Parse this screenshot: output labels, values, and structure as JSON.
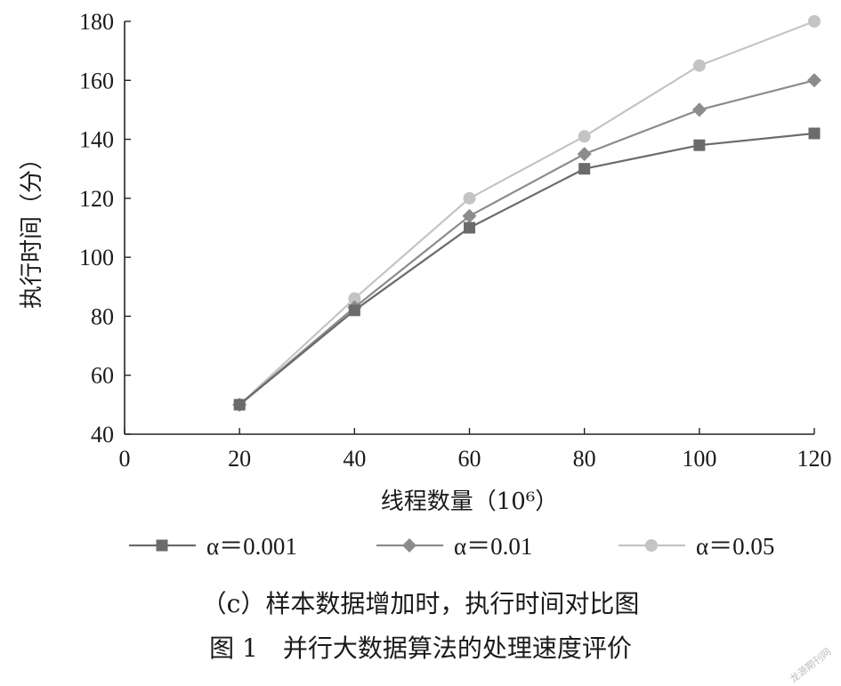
{
  "chart_data": {
    "type": "line",
    "xlabel": "线程数量（10⁶）",
    "ylabel": "执行时间（分）",
    "xlim": [
      0,
      120
    ],
    "ylim": [
      40,
      180
    ],
    "x_ticks": [
      "0",
      "20",
      "40",
      "60",
      "80",
      "100",
      "120"
    ],
    "y_ticks": [
      "40",
      "60",
      "80",
      "100",
      "120",
      "140",
      "160",
      "180"
    ],
    "x": [
      20,
      40,
      60,
      80,
      100,
      120
    ],
    "series": [
      {
        "name": "α＝0.001",
        "marker": "square",
        "color": "#6b6b6b",
        "values": [
          50,
          82,
          110,
          130,
          138,
          142
        ]
      },
      {
        "name": "α＝0.01",
        "marker": "diamond",
        "color": "#8c8c8c",
        "values": [
          50,
          83,
          114,
          135,
          150,
          160
        ]
      },
      {
        "name": "α＝0.05",
        "marker": "circle",
        "color": "#c4c4c4",
        "values": [
          50,
          86,
          120,
          141,
          165,
          180
        ]
      }
    ],
    "grid": false,
    "legend_position": "bottom"
  },
  "captions": {
    "sub": "（c）样本数据增加时，执行时间对比图",
    "main": "图 1　并行大数据算法的处理速度评价"
  },
  "watermark": "龙源期刊网"
}
